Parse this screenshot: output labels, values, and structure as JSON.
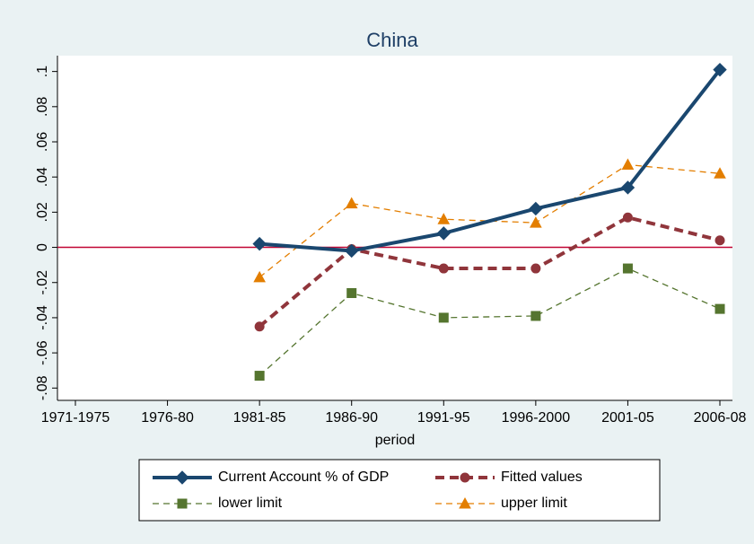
{
  "chart_data": {
    "type": "line",
    "title": "China",
    "x_label": "period",
    "categories": [
      "1971-1975",
      "1976-80",
      "1981-85",
      "1986-90",
      "1991-95",
      "1996-2000",
      "2001-05",
      "2006-08"
    ],
    "series": [
      {
        "name": "Current Account % of GDP",
        "color": "#1a476f",
        "width": 4,
        "dash": "none",
        "marker": "diamond",
        "values": [
          null,
          null,
          0.002,
          -0.002,
          0.008,
          0.022,
          0.034,
          0.101
        ]
      },
      {
        "name": "Fitted values",
        "color": "#90353b",
        "width": 4,
        "dash": "10 6",
        "marker": "circle",
        "values": [
          null,
          null,
          -0.045,
          -0.001,
          -0.012,
          -0.012,
          0.017,
          0.004
        ]
      },
      {
        "name": "lower limit",
        "color": "#55752f",
        "width": 1.3,
        "dash": "7 5",
        "marker": "square",
        "values": [
          null,
          null,
          -0.073,
          -0.026,
          -0.04,
          -0.039,
          -0.012,
          -0.035
        ]
      },
      {
        "name": "upper limit",
        "color": "#e37e00",
        "width": 1.3,
        "dash": "7 5",
        "marker": "triangle",
        "values": [
          null,
          null,
          -0.017,
          0.025,
          0.016,
          0.014,
          0.047,
          0.042
        ]
      }
    ],
    "reference_line": {
      "value": 0,
      "color": "#c10534"
    },
    "ylim": [
      -0.087,
      0.109
    ],
    "yticks": [
      {
        "value": -0.08,
        "label": "-.08"
      },
      {
        "value": -0.06,
        "label": "-.06"
      },
      {
        "value": -0.04,
        "label": "-.04"
      },
      {
        "value": -0.02,
        "label": "-.02"
      },
      0,
      {
        "value": 0.02,
        "label": ".02"
      },
      {
        "value": 0.04,
        "label": ".04"
      },
      {
        "value": 0.06,
        "label": ".06"
      },
      {
        "value": 0.08,
        "label": ".08"
      },
      {
        "value": 0.1,
        "label": ".1"
      }
    ],
    "grid": false
  }
}
